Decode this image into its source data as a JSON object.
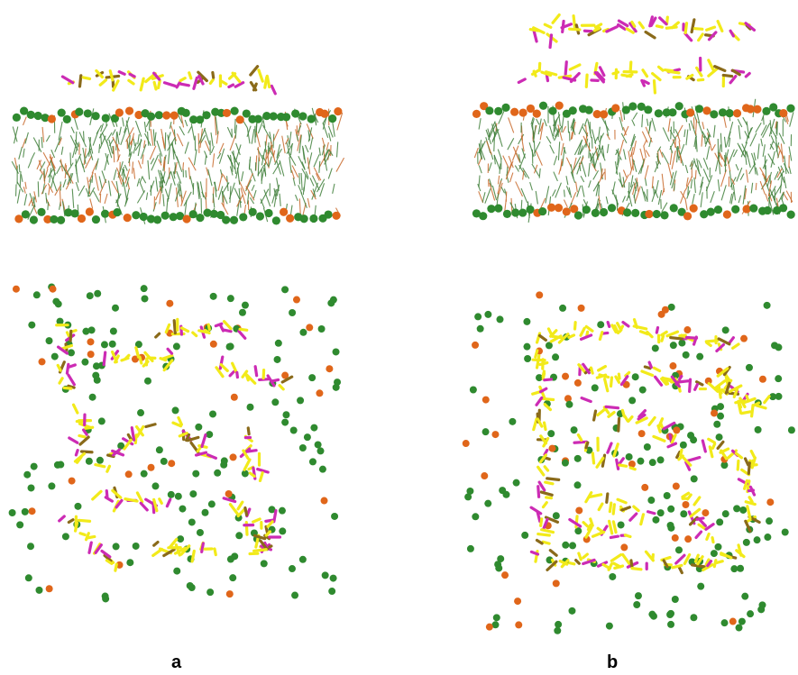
{
  "panels": {
    "a": {
      "label": "a"
    },
    "b": {
      "label": "b"
    }
  },
  "colors": {
    "lipid_tail": "#3f7f3a",
    "lipid_tail_alt": "#c8682a",
    "head_green": "#2f8a2f",
    "head_orange": "#e0661a",
    "peptide_yellow": "#f2ea1a",
    "peptide_magenta": "#cc2bb4",
    "peptide_brown": "#8a6a1a"
  }
}
